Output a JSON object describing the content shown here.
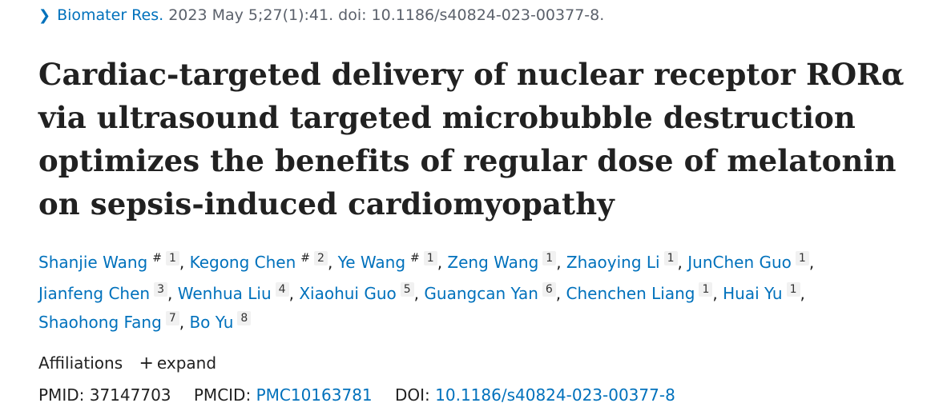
{
  "citation": {
    "journal": "Biomater Res.",
    "details": "2023 May 5;27(1):41. doi: 10.1186/s40824-023-00377-8."
  },
  "title": "Cardiac-targeted delivery of nuclear receptor RORα via ultrasound targeted microbubble destruction optimizes the benefits of regular dose of melatonin on sepsis-induced cardiomyopathy",
  "authors": [
    {
      "name": "Shanjie Wang",
      "equal": "#",
      "aff": "1"
    },
    {
      "name": "Kegong Chen",
      "equal": "#",
      "aff": "2"
    },
    {
      "name": "Ye Wang",
      "equal": "#",
      "aff": "1"
    },
    {
      "name": "Zeng Wang",
      "equal": "",
      "aff": "1"
    },
    {
      "name": "Zhaoying Li",
      "equal": "",
      "aff": "1"
    },
    {
      "name": "JunChen Guo",
      "equal": "",
      "aff": "1"
    },
    {
      "name": "Jianfeng Chen",
      "equal": "",
      "aff": "3"
    },
    {
      "name": "Wenhua Liu",
      "equal": "",
      "aff": "4"
    },
    {
      "name": "Xiaohui Guo",
      "equal": "",
      "aff": "5"
    },
    {
      "name": "Guangcan Yan",
      "equal": "",
      "aff": "6"
    },
    {
      "name": "Chenchen Liang",
      "equal": "",
      "aff": "1"
    },
    {
      "name": "Huai Yu",
      "equal": "",
      "aff": "1"
    },
    {
      "name": "Shaohong Fang",
      "equal": "",
      "aff": "7"
    },
    {
      "name": "Bo Yu",
      "equal": "",
      "aff": "8"
    }
  ],
  "affiliations": {
    "label": "Affiliations",
    "expand_icon": "plus-icon",
    "expand_label": "expand"
  },
  "identifiers": {
    "pmid_label": "PMID:",
    "pmid": "37147703",
    "pmcid_label": "PMCID:",
    "pmcid": "PMC10163781",
    "doi_label": "DOI:",
    "doi": "10.1186/s40824-023-00377-8"
  },
  "colors": {
    "link": "#0071bc",
    "text": "#212121",
    "muted": "#5b616b"
  }
}
